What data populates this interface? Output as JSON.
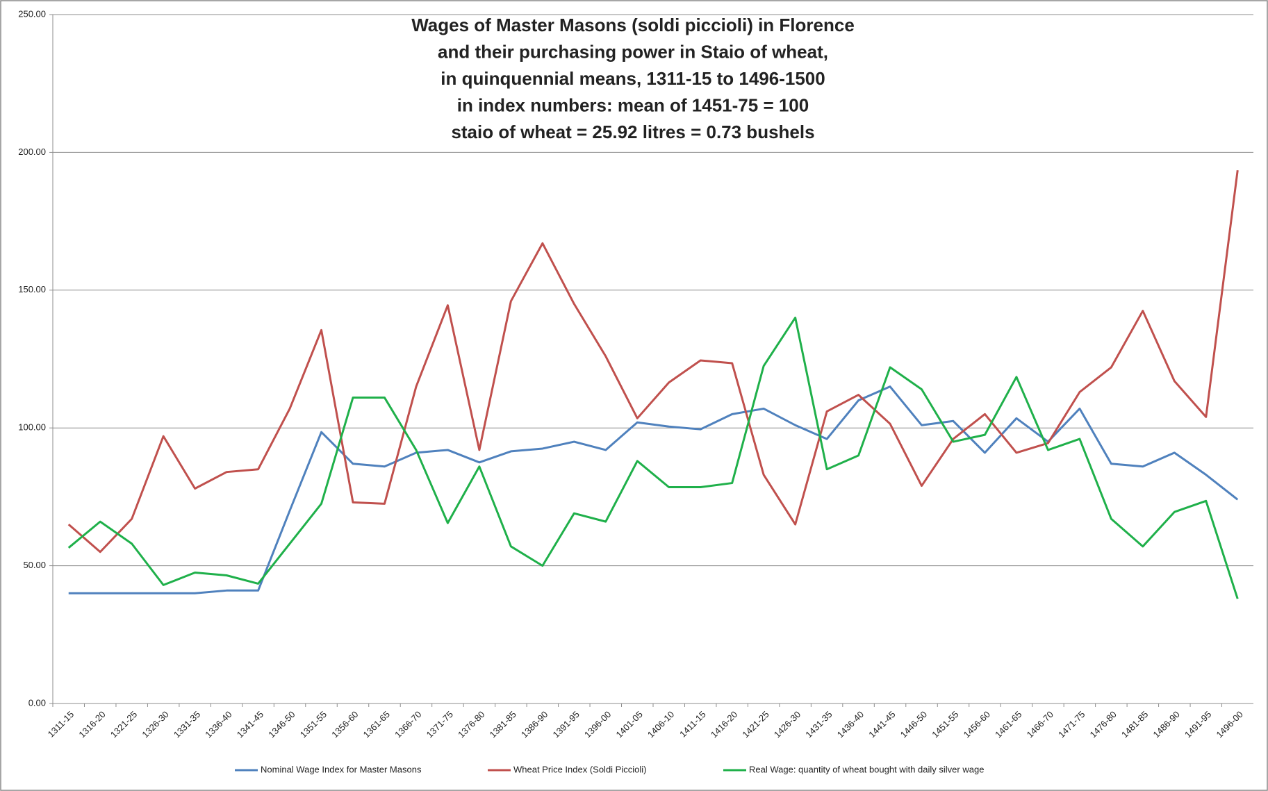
{
  "chart_data": {
    "type": "line",
    "title": [
      "Wages of Master Masons (soldi piccioli) in Florence",
      "and their purchasing power in Staio of wheat,",
      "in quinquennial means, 1311-15 to 1496-1500",
      "in index numbers:  mean of 1451-75 = 100",
      "staio of wheat = 25.92 litres = 0.73 bushels"
    ],
    "categories": [
      "1311-15",
      "1316-20",
      "1321-25",
      "1326-30",
      "1331-35",
      "1336-40",
      "1341-45",
      "1346-50",
      "1351-55",
      "1356-60",
      "1361-65",
      "1366-70",
      "1371-75",
      "1376-80",
      "1381-85",
      "1386-90",
      "1391-95",
      "1396-00",
      "1401-05",
      "1406-10",
      "1411-15",
      "1416-20",
      "1421-25",
      "1426-30",
      "1431-35",
      "1436-40",
      "1441-45",
      "1446-50",
      "1451-55",
      "1456-60",
      "1461-65",
      "1466-70",
      "1471-75",
      "1476-80",
      "1481-85",
      "1486-90",
      "1491-95",
      "1496-00"
    ],
    "series": [
      {
        "name": "Nominal Wage Index for Master Masons",
        "color": "#4f81bd",
        "values": [
          40,
          40,
          40,
          40,
          40,
          41,
          41,
          70,
          98.5,
          87,
          86,
          91,
          92,
          87.5,
          91.5,
          92.5,
          95,
          92,
          102,
          100.5,
          99.5,
          105,
          107,
          101,
          96,
          110,
          115,
          101,
          102.5,
          91,
          103.5,
          95,
          107,
          87,
          86,
          91,
          83,
          74
        ]
      },
      {
        "name": "Wheat Price Index (Soldi Piccioli)",
        "color": "#c0504d",
        "values": [
          65,
          55,
          67,
          97,
          78,
          84,
          85,
          107,
          135.5,
          73,
          72.5,
          115,
          144.5,
          92,
          146,
          167,
          145,
          126,
          103.5,
          116.5,
          124.5,
          123.5,
          83,
          65,
          106,
          112,
          101.5,
          79,
          96,
          105,
          91,
          94.5,
          113,
          122,
          142.5,
          117,
          104,
          193.5
        ]
      },
      {
        "name": "Real Wage: quantity of wheat bought with daily silver wage",
        "color": "#1fb04a",
        "values": [
          56.5,
          66,
          58,
          43,
          47.5,
          46.5,
          43.5,
          58,
          72.5,
          111,
          111,
          92,
          65.5,
          86,
          57,
          50,
          69,
          66,
          88,
          78.5,
          78.5,
          80,
          122.5,
          140,
          85,
          90,
          122,
          114,
          95,
          97.5,
          118.5,
          92,
          96,
          67,
          57,
          69.5,
          73.5,
          38
        ]
      }
    ],
    "ylim": [
      0,
      250
    ],
    "yticks": [
      {
        "value": 0,
        "label": "0.00"
      },
      {
        "value": 50,
        "label": "50.00"
      },
      {
        "value": 100,
        "label": "100.00"
      },
      {
        "value": 150,
        "label": "150.00"
      },
      {
        "value": 200,
        "label": "200.00"
      },
      {
        "value": 250,
        "label": "250.00"
      }
    ],
    "grid": true
  }
}
